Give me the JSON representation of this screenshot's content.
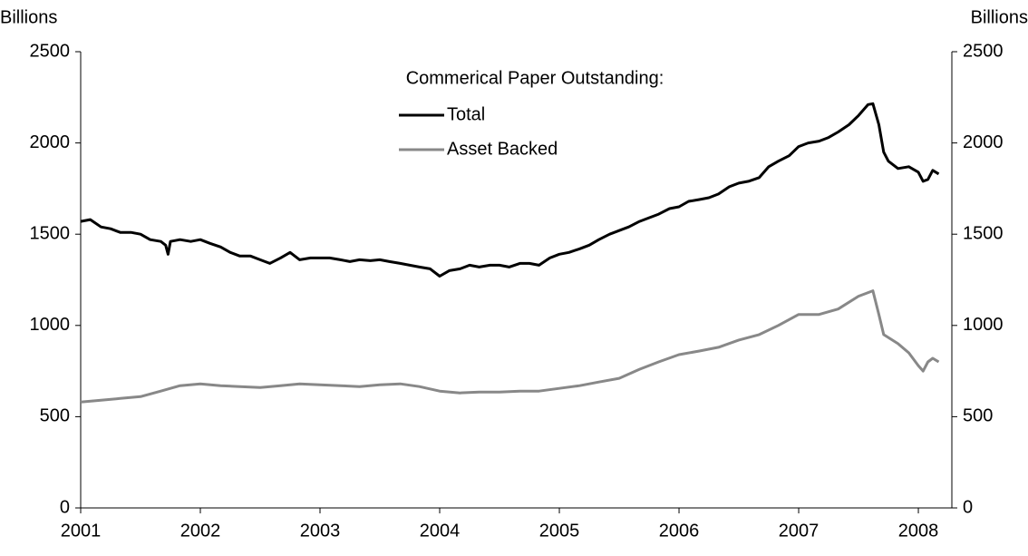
{
  "chart_data": {
    "type": "line",
    "title": "Commerical Paper Outstanding:",
    "y_label": "Billions",
    "y2_label": "Billions",
    "xlim": [
      2001,
      2008.28
    ],
    "xticks": [
      2001,
      2002,
      2003,
      2004,
      2005,
      2006,
      2007,
      2008
    ],
    "ylim": [
      0,
      2500
    ],
    "yticks": [
      0,
      500,
      1000,
      1500,
      2000,
      2500
    ],
    "y2lim": [
      0,
      2500
    ],
    "y2ticks": [
      0,
      500,
      1000,
      1500,
      2000,
      2500
    ],
    "grid": false,
    "legend": "top",
    "series": [
      {
        "name": "Total",
        "color": "#000000",
        "x": [
          2001.0,
          2001.08,
          2001.17,
          2001.25,
          2001.33,
          2001.42,
          2001.5,
          2001.58,
          2001.67,
          2001.71,
          2001.73,
          2001.75,
          2001.83,
          2001.92,
          2002.0,
          2002.08,
          2002.17,
          2002.25,
          2002.33,
          2002.42,
          2002.5,
          2002.58,
          2002.67,
          2002.75,
          2002.83,
          2002.92,
          2003.0,
          2003.08,
          2003.17,
          2003.25,
          2003.33,
          2003.42,
          2003.5,
          2003.58,
          2003.67,
          2003.75,
          2003.83,
          2003.92,
          2004.0,
          2004.08,
          2004.17,
          2004.25,
          2004.33,
          2004.42,
          2004.5,
          2004.58,
          2004.67,
          2004.75,
          2004.83,
          2004.92,
          2005.0,
          2005.08,
          2005.17,
          2005.25,
          2005.33,
          2005.42,
          2005.5,
          2005.58,
          2005.67,
          2005.75,
          2005.83,
          2005.92,
          2006.0,
          2006.08,
          2006.17,
          2006.25,
          2006.33,
          2006.42,
          2006.5,
          2006.58,
          2006.67,
          2006.75,
          2006.83,
          2006.92,
          2007.0,
          2007.08,
          2007.17,
          2007.25,
          2007.33,
          2007.42,
          2007.5,
          2007.58,
          2007.62,
          2007.67,
          2007.71,
          2007.75,
          2007.83,
          2007.92,
          2008.0,
          2008.04,
          2008.08,
          2008.12,
          2008.17
        ],
        "values": [
          1570,
          1580,
          1540,
          1530,
          1510,
          1510,
          1500,
          1470,
          1460,
          1440,
          1390,
          1460,
          1470,
          1460,
          1470,
          1450,
          1430,
          1400,
          1380,
          1380,
          1360,
          1340,
          1370,
          1400,
          1360,
          1370,
          1370,
          1370,
          1360,
          1350,
          1360,
          1355,
          1360,
          1350,
          1340,
          1330,
          1320,
          1310,
          1270,
          1300,
          1310,
          1330,
          1320,
          1330,
          1330,
          1320,
          1340,
          1340,
          1330,
          1370,
          1390,
          1400,
          1420,
          1440,
          1470,
          1500,
          1520,
          1540,
          1570,
          1590,
          1610,
          1640,
          1650,
          1680,
          1690,
          1700,
          1720,
          1760,
          1780,
          1790,
          1810,
          1870,
          1900,
          1930,
          1980,
          2000,
          2010,
          2030,
          2060,
          2100,
          2150,
          2210,
          2215,
          2100,
          1950,
          1900,
          1860,
          1870,
          1840,
          1790,
          1800,
          1850,
          1830
        ]
      },
      {
        "name": "Asset Backed",
        "color": "#888888",
        "x": [
          2001.0,
          2001.17,
          2001.33,
          2001.5,
          2001.67,
          2001.83,
          2002.0,
          2002.17,
          2002.33,
          2002.5,
          2002.67,
          2002.83,
          2003.0,
          2003.17,
          2003.33,
          2003.5,
          2003.67,
          2003.83,
          2004.0,
          2004.17,
          2004.33,
          2004.5,
          2004.67,
          2004.83,
          2005.0,
          2005.17,
          2005.33,
          2005.5,
          2005.67,
          2005.83,
          2006.0,
          2006.17,
          2006.33,
          2006.5,
          2006.67,
          2006.83,
          2007.0,
          2007.17,
          2007.33,
          2007.5,
          2007.62,
          2007.67,
          2007.71,
          2007.83,
          2007.92,
          2008.0,
          2008.04,
          2008.08,
          2008.12,
          2008.17
        ],
        "values": [
          580,
          590,
          600,
          610,
          640,
          670,
          680,
          670,
          665,
          660,
          670,
          680,
          675,
          670,
          665,
          675,
          680,
          665,
          640,
          630,
          635,
          635,
          640,
          640,
          655,
          670,
          690,
          710,
          760,
          800,
          840,
          860,
          880,
          920,
          950,
          1000,
          1060,
          1060,
          1090,
          1160,
          1190,
          1060,
          950,
          900,
          850,
          780,
          750,
          800,
          820,
          800
        ]
      }
    ]
  }
}
